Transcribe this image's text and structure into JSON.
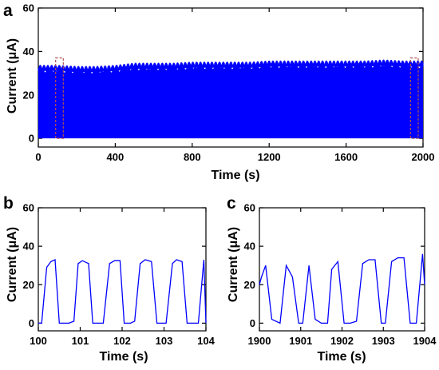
{
  "chart_data": [
    {
      "panel": "a",
      "type": "line",
      "xlabel": "Time (s)",
      "ylabel": "Current (μA)",
      "xlim": [
        0,
        2000
      ],
      "ylim": [
        -4,
        60
      ],
      "xticks": [
        0,
        400,
        800,
        1200,
        1600,
        2000
      ],
      "yticks": [
        0,
        20,
        40,
        60
      ],
      "series_color": "#0000ff",
      "signal": "square-wave oscillation between 0 and peak current, period about 0.5 s, dense at this scale",
      "peak_envelope": {
        "x": [
          0,
          100,
          200,
          300,
          400,
          500,
          600,
          700,
          800,
          900,
          1000,
          1100,
          1200,
          1300,
          1400,
          1500,
          1600,
          1700,
          1800,
          1900,
          2000
        ],
        "y": [
          33,
          33,
          32.5,
          32.5,
          33,
          34,
          34,
          34,
          34.5,
          34.5,
          34.5,
          34.5,
          35,
          35,
          35,
          35,
          35,
          35,
          35.5,
          35,
          35
        ]
      },
      "highlight_boxes": [
        {
          "x": [
            90,
            130
          ],
          "y": [
            0,
            37
          ],
          "color": "#b05050"
        },
        {
          "x": [
            1935,
            1975
          ],
          "y": [
            0,
            37
          ],
          "color": "#b05050"
        }
      ]
    },
    {
      "panel": "b",
      "type": "line",
      "xlabel": "Time (s)",
      "ylabel": "Current (μA)",
      "xlim": [
        100,
        104
      ],
      "ylim": [
        -4,
        60
      ],
      "xticks": [
        100,
        101,
        102,
        103,
        104
      ],
      "yticks": [
        0,
        20,
        40,
        60
      ],
      "series_color": "#0000ff",
      "x": [
        100,
        100.08,
        100.2,
        100.3,
        100.4,
        100.5,
        100.6,
        100.73,
        100.85,
        100.95,
        101.05,
        101.2,
        101.3,
        101.42,
        101.55,
        101.7,
        101.82,
        101.95,
        102.05,
        102.2,
        102.3,
        102.43,
        102.55,
        102.7,
        102.83,
        102.95,
        103.05,
        103.2,
        103.3,
        103.43,
        103.55,
        103.7,
        103.82,
        103.95,
        104
      ],
      "y": [
        0,
        0,
        29,
        32,
        33,
        0,
        0,
        0,
        1,
        31,
        32.5,
        31,
        0,
        0,
        0,
        31,
        32.5,
        32.5,
        0,
        0,
        1,
        31,
        33,
        32,
        0,
        0,
        0,
        31,
        33,
        32,
        0,
        0,
        0,
        33,
        0
      ]
    },
    {
      "panel": "c",
      "type": "line",
      "xlabel": "Time (s)",
      "ylabel": "Current (μA)",
      "xlim": [
        1900,
        1904
      ],
      "ylim": [
        -4,
        60
      ],
      "xticks": [
        1900,
        1901,
        1902,
        1903,
        1904
      ],
      "yticks": [
        0,
        20,
        40,
        60
      ],
      "series_color": "#0000ff",
      "x": [
        1900,
        1900.05,
        1900.15,
        1900.3,
        1900.5,
        1900.65,
        1900.8,
        1900.95,
        1901.05,
        1901.2,
        1901.35,
        1901.5,
        1901.65,
        1901.75,
        1901.9,
        1902.05,
        1902.2,
        1902.35,
        1902.5,
        1902.65,
        1902.8,
        1902.95,
        1903.05,
        1903.2,
        1903.35,
        1903.5,
        1903.65,
        1903.8,
        1903.95,
        1904
      ],
      "y": [
        20,
        24,
        30,
        2,
        0,
        30,
        24,
        0,
        0,
        30,
        2,
        0,
        0,
        28,
        32,
        0,
        0,
        1,
        31,
        33,
        33,
        0,
        0,
        32,
        34,
        34,
        0,
        0,
        36,
        20
      ]
    }
  ],
  "panel_letters": {
    "a": "a",
    "b": "b",
    "c": "c"
  }
}
